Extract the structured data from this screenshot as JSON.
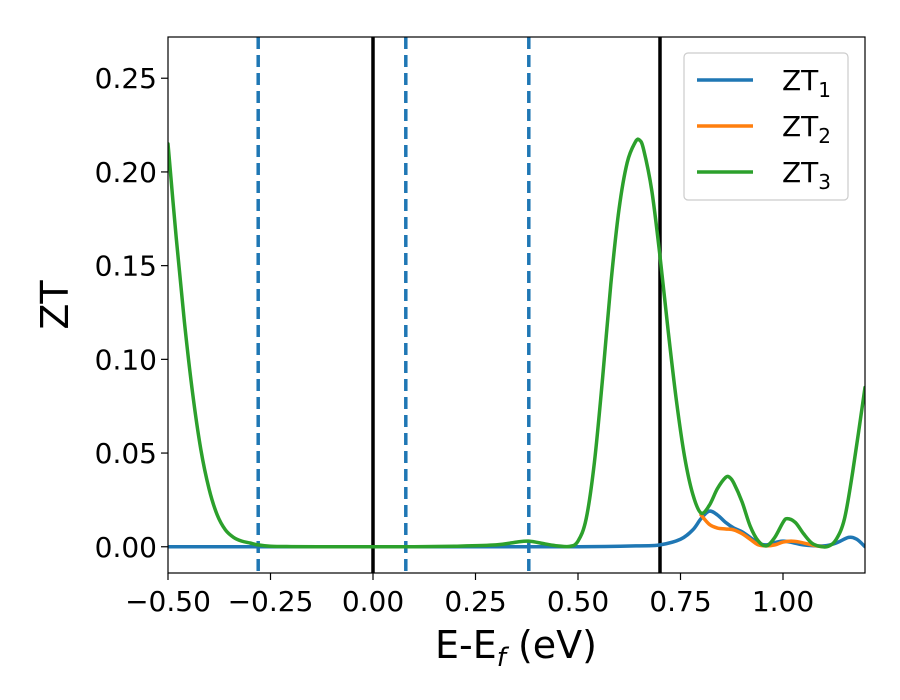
{
  "chart_data": {
    "type": "line",
    "xlabel": "E-E",
    "xlabel_sub": "f",
    "xlabel_unit": " (eV)",
    "ylabel": "ZT",
    "xlim": [
      -0.5,
      1.2
    ],
    "ylim": [
      -0.014,
      0.272
    ],
    "grid": false,
    "legend_position": "top-right",
    "xticks": [
      -0.5,
      -0.25,
      0.0,
      0.25,
      0.5,
      0.75,
      1.0
    ],
    "xtick_labels": [
      "−0.50",
      "−0.25",
      "0.00",
      "0.25",
      "0.50",
      "0.75",
      "1.00"
    ],
    "yticks": [
      0.0,
      0.05,
      0.1,
      0.15,
      0.2,
      0.25
    ],
    "ytick_labels": [
      "0.00",
      "0.05",
      "0.10",
      "0.15",
      "0.20",
      "0.25"
    ],
    "vlines": [
      {
        "x": -0.28,
        "style": "dashed",
        "color": "#1f77b4"
      },
      {
        "x": 0.0,
        "style": "solid",
        "color": "#000000"
      },
      {
        "x": 0.08,
        "style": "dashed",
        "color": "#1f77b4"
      },
      {
        "x": 0.38,
        "style": "dashed",
        "color": "#1f77b4"
      },
      {
        "x": 0.7,
        "style": "solid",
        "color": "#000000"
      }
    ],
    "series": [
      {
        "name": "ZT",
        "sub": "1",
        "color": "#1f77b4",
        "x": [
          -0.5,
          -0.25,
          0.0,
          0.25,
          0.5,
          0.65,
          0.7,
          0.75,
          0.78,
          0.8,
          0.82,
          0.84,
          0.86,
          0.88,
          0.9,
          0.92,
          0.94,
          0.96,
          1.0,
          1.05,
          1.1,
          1.13,
          1.16,
          1.18,
          1.2
        ],
        "y": [
          0.0,
          0.0,
          0.0,
          0.0,
          0.0,
          0.0005,
          0.001,
          0.004,
          0.009,
          0.015,
          0.019,
          0.017,
          0.013,
          0.01,
          0.008,
          0.005,
          0.002,
          0.001,
          0.003,
          0.001,
          0.0005,
          0.002,
          0.005,
          0.004,
          0.0
        ]
      },
      {
        "name": "ZT",
        "sub": "2",
        "color": "#ff7f0e",
        "x": [
          0.8,
          0.82,
          0.84,
          0.86,
          0.88,
          0.9,
          0.92,
          0.94,
          0.96,
          0.98,
          1.0,
          1.02,
          1.04,
          1.06,
          1.08,
          1.1
        ],
        "y": [
          0.017,
          0.012,
          0.01,
          0.0095,
          0.009,
          0.007,
          0.004,
          0.001,
          0.0005,
          0.001,
          0.0025,
          0.003,
          0.0025,
          0.0015,
          0.0005,
          0.0
        ]
      },
      {
        "name": "ZT",
        "sub": "3",
        "color": "#2ca02c",
        "x": [
          -0.5,
          -0.48,
          -0.46,
          -0.44,
          -0.42,
          -0.4,
          -0.38,
          -0.36,
          -0.34,
          -0.32,
          -0.3,
          -0.28,
          -0.25,
          -0.2,
          -0.1,
          0.0,
          0.1,
          0.2,
          0.3,
          0.35,
          0.38,
          0.42,
          0.45,
          0.48,
          0.5,
          0.52,
          0.54,
          0.56,
          0.58,
          0.6,
          0.62,
          0.64,
          0.65,
          0.66,
          0.68,
          0.7,
          0.72,
          0.74,
          0.76,
          0.78,
          0.8,
          0.82,
          0.84,
          0.86,
          0.87,
          0.88,
          0.9,
          0.92,
          0.94,
          0.96,
          0.98,
          1.0,
          1.01,
          1.03,
          1.05,
          1.07,
          1.09,
          1.11,
          1.13,
          1.15,
          1.17,
          1.2
        ],
        "y": [
          0.215,
          0.165,
          0.12,
          0.082,
          0.052,
          0.031,
          0.017,
          0.009,
          0.005,
          0.003,
          0.002,
          0.001,
          0.0003,
          0.0001,
          0.0,
          0.0,
          0.0,
          0.0003,
          0.001,
          0.0025,
          0.003,
          0.0015,
          0.0005,
          0.0002,
          0.003,
          0.015,
          0.045,
          0.09,
          0.14,
          0.18,
          0.205,
          0.216,
          0.217,
          0.212,
          0.19,
          0.155,
          0.115,
          0.078,
          0.048,
          0.028,
          0.018,
          0.022,
          0.031,
          0.037,
          0.037,
          0.034,
          0.024,
          0.011,
          0.003,
          0.0005,
          0.005,
          0.013,
          0.015,
          0.013,
          0.007,
          0.002,
          0.0002,
          0.0002,
          0.004,
          0.015,
          0.04,
          0.085
        ]
      }
    ]
  }
}
